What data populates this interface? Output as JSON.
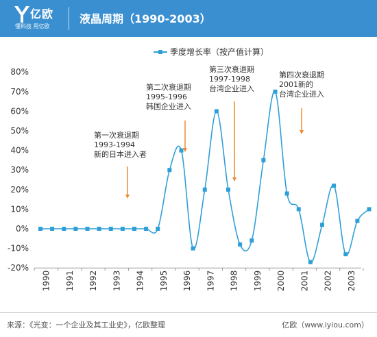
{
  "header": {
    "logo_text": "亿欧",
    "logo_sub": "懂科技 用亿欧",
    "title": "液晶周期（1990-2003）"
  },
  "chart_data": {
    "type": "line",
    "title": "",
    "xlabel": "",
    "ylabel": "",
    "ylim": [
      -20,
      80
    ],
    "yticks": [
      -20,
      -10,
      0,
      10,
      20,
      30,
      40,
      50,
      60,
      70,
      80
    ],
    "ytick_labels": [
      "-20%",
      "-10%",
      "0%",
      "10%",
      "20%",
      "30%",
      "40%",
      "50%",
      "60%",
      "70%",
      "80%"
    ],
    "x_tick_labels": [
      "1990",
      "1991",
      "1992",
      "1993",
      "1994",
      "1995",
      "1996",
      "1997",
      "1998",
      "1999",
      "2000",
      "2001",
      "2002",
      "2003"
    ],
    "legend_position": "top",
    "grid": false,
    "series": [
      {
        "name": "季度增长率（按产值计算）",
        "color": "#2f9fd8",
        "values": [
          0,
          0,
          0,
          0,
          0,
          0,
          0,
          0,
          0,
          0,
          0,
          30,
          40,
          -10,
          20,
          60,
          20,
          -8,
          -6,
          35,
          70,
          18,
          10,
          -17,
          2,
          22,
          -13,
          4,
          10
        ]
      }
    ],
    "annotations": [
      {
        "lines": [
          "第一次衰退期",
          "1993-1994",
          "新的日本进入者"
        ]
      },
      {
        "lines": [
          "第二次衰退期",
          "1995-1996",
          "韩国企业进入"
        ]
      },
      {
        "lines": [
          "第三次衰退期",
          "1997-1998",
          "台湾企业进入"
        ]
      },
      {
        "lines": [
          "第四次衰退期",
          "2001新的",
          "台湾企业进入"
        ]
      }
    ]
  },
  "footer": {
    "source": "来源：《光变：一个企业及其工业史》，亿欧整理",
    "site": "亿欧（www.iyiou.com）"
  }
}
